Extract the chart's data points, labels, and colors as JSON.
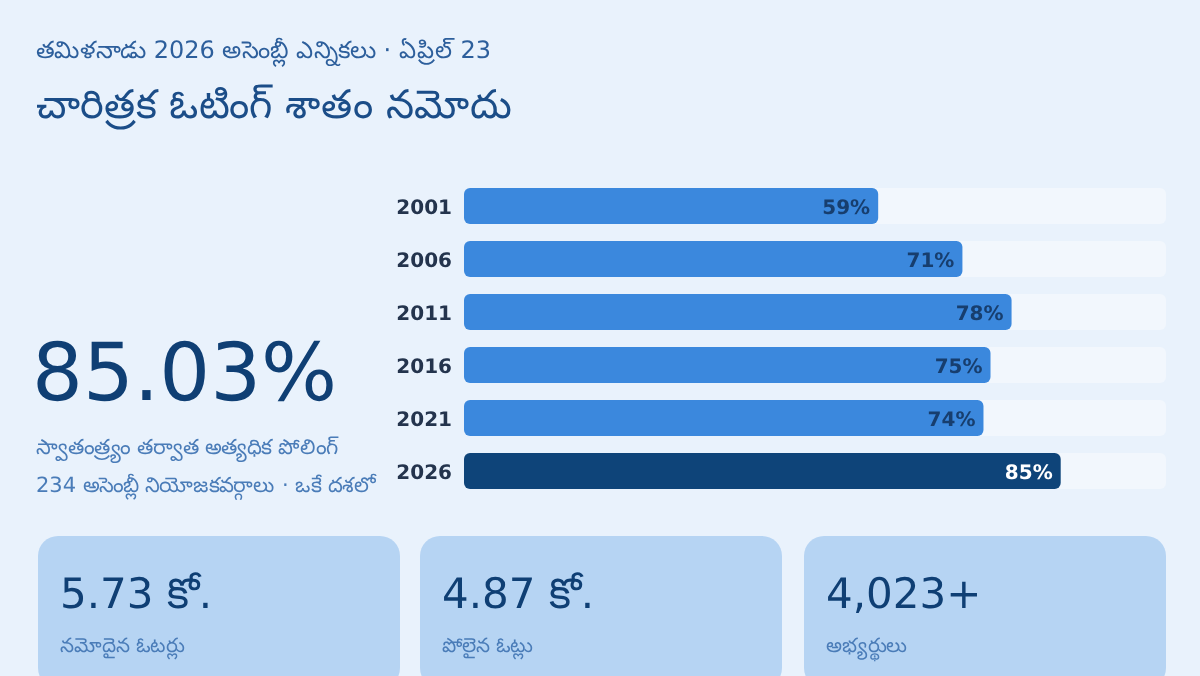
{
  "chart_data": {
    "type": "bar",
    "orientation": "horizontal",
    "subtitle": "తమిళనాడు 2026 అసెంబ్లీ ఎన్నికలు · ఏప్రిల్ 23",
    "title": "చారిత్రక ఓటింగ్ శాతం నమోదు",
    "categories": [
      "2001",
      "2006",
      "2011",
      "2016",
      "2021",
      "2026"
    ],
    "values": [
      59,
      71,
      78,
      75,
      74,
      85
    ],
    "value_labels": [
      "59%",
      "71%",
      "78%",
      "75%",
      "74%",
      "85%"
    ],
    "colors": [
      "#3b88dd",
      "#3b88dd",
      "#3b88dd",
      "#3b88dd",
      "#3b88dd",
      "#0e4479"
    ],
    "xlim": [
      0,
      100
    ],
    "annotations": [
      "85.03%",
      "స్వాతంత్ర్యం తర్వాత అత్యధిక పోలింగ్",
      "234 అసెంబ్లీ నియోజకవర్గాలు · ఒకే దశలో",
      "5.73 కో.",
      "నమోదైన ఓటర్లు",
      "4.87 కో.",
      "పోలైన ఓట్లు",
      "4,023+",
      "అభ్యర్థులు"
    ]
  }
}
